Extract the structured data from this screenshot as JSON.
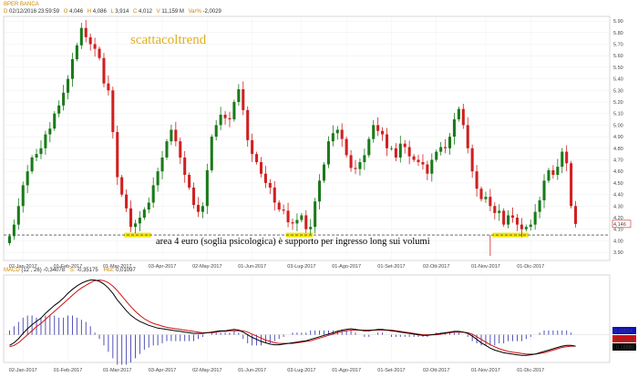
{
  "header": {
    "title": "BPER BANCA",
    "date": "02/12/2016",
    "time": "23:59:59",
    "open_label": "O",
    "open": "4,046",
    "high_label": "H",
    "high": "4,086",
    "low_label": "L",
    "low": "3,914",
    "close_label": "C",
    "close": "4,012",
    "vol_label": "V",
    "volume": "11,159 M",
    "var_label": "Var%",
    "var": "-2,0029"
  },
  "brand": "scattacoltrend",
  "annotation": "area 4 euro (soglia psicologica) è supporto per ingresso long sui volumi",
  "last_price_label": "4,146",
  "macd_header": {
    "name": "MACD",
    "params": "(12 , 26)",
    "macd_value": "-0,34078",
    "signal_label": "S:",
    "signal_value": "-0,35175",
    "hist_label": "Hist:",
    "hist_value": "0,01097"
  },
  "macd_right_labels": [
    "0,00554",
    "-0,16108",
    "-0,16880"
  ],
  "colors": {
    "up": "#1a7a1a",
    "down": "#d02020",
    "support": "#555555",
    "highlight": "#f2e600",
    "macd_line": "#000000",
    "signal_line": "#d01010",
    "hist": "#4040b0",
    "last_price_box": "#d02020",
    "brand": "#e0b020"
  },
  "chart_data": [
    {
      "type": "candlestick",
      "title": "BPER BANCA",
      "x_tick_labels": [
        "02-Jan-2017",
        "01-Feb-2017",
        "01-Mar-2017",
        "03-Apr-2017",
        "02-May-2017",
        "01-Jun-2017",
        "03-Lug-2017",
        "01-Ago-2017",
        "01-Set-2017",
        "02-Ott-2017",
        "01-Nov-2017",
        "01-Dic-2017"
      ],
      "y_tick_labels": [
        "3.90",
        "4.00",
        "4.10",
        "4.20",
        "4.30",
        "4.40",
        "4.50",
        "4.60",
        "4.70",
        "4.80",
        "4.90",
        "5.00",
        "5.10",
        "5.20",
        "5.30",
        "5.40",
        "5.50",
        "5.60",
        "5.70",
        "5.80",
        "5.90"
      ],
      "ylim": [
        3.83,
        5.94
      ],
      "support_level": 4.05,
      "last_price": 4.146,
      "support_highlights": [
        {
          "x0": 26,
          "x1": 31
        },
        {
          "x0": 62,
          "x1": 67
        },
        {
          "x0": 108,
          "x1": 115
        }
      ],
      "closes": [
        4.04,
        4.14,
        4.3,
        4.48,
        4.6,
        4.72,
        4.75,
        4.8,
        4.92,
        4.97,
        5.1,
        5.17,
        5.28,
        5.4,
        5.57,
        5.69,
        5.84,
        5.76,
        5.7,
        5.66,
        5.58,
        5.36,
        5.3,
        4.94,
        4.55,
        4.4,
        4.28,
        4.12,
        4.15,
        4.2,
        4.27,
        4.33,
        4.48,
        4.6,
        4.72,
        4.86,
        4.96,
        4.86,
        4.72,
        4.57,
        4.46,
        4.31,
        4.25,
        4.3,
        4.61,
        4.9,
        5.0,
        5.09,
        5.06,
        5.05,
        5.2,
        5.31,
        5.13,
        4.87,
        4.75,
        4.68,
        4.58,
        4.5,
        4.46,
        4.33,
        4.27,
        4.26,
        4.16,
        4.15,
        4.18,
        4.22,
        4.1,
        4.12,
        4.34,
        4.52,
        4.66,
        4.86,
        4.93,
        4.96,
        4.88,
        4.74,
        4.63,
        4.62,
        4.68,
        4.74,
        4.88,
        5.0,
        4.95,
        4.92,
        4.8,
        4.8,
        4.72,
        4.84,
        4.81,
        4.73,
        4.7,
        4.68,
        4.66,
        4.58,
        4.7,
        4.77,
        4.81,
        4.8,
        4.9,
        5.05,
        5.14,
        5.0,
        4.8,
        4.6,
        4.45,
        4.36,
        4.38,
        4.3,
        4.24,
        4.26,
        4.14,
        4.22,
        4.2,
        4.14,
        4.1,
        4.12,
        4.14,
        4.25,
        4.35,
        4.52,
        4.61,
        4.57,
        4.64,
        4.77,
        4.67,
        4.3,
        4.146
      ]
    },
    {
      "type": "line",
      "title": "MACD",
      "series": [
        {
          "name": "MACD",
          "values": [
            -0.16,
            -0.12,
            -0.06,
            0.02,
            0.09,
            0.15,
            0.2,
            0.25,
            0.32,
            0.38,
            0.44,
            0.49,
            0.55,
            0.62,
            0.68,
            0.73,
            0.77,
            0.8,
            0.82,
            0.82,
            0.8,
            0.76,
            0.7,
            0.62,
            0.52,
            0.44,
            0.36,
            0.29,
            0.24,
            0.2,
            0.17,
            0.14,
            0.12,
            0.1,
            0.09,
            0.08,
            0.07,
            0.06,
            0.05,
            0.04,
            0.03,
            0.02,
            0.02,
            0.02,
            0.03,
            0.04,
            0.05,
            0.06,
            0.06,
            0.07,
            0.08,
            0.07,
            0.04,
            0.0,
            -0.04,
            -0.07,
            -0.1,
            -0.12,
            -0.14,
            -0.15,
            -0.15,
            -0.14,
            -0.13,
            -0.12,
            -0.11,
            -0.1,
            -0.09,
            -0.07,
            -0.05,
            -0.03,
            -0.01,
            0.01,
            0.03,
            0.05,
            0.07,
            0.08,
            0.09,
            0.08,
            0.07,
            0.06,
            0.06,
            0.07,
            0.08,
            0.08,
            0.07,
            0.06,
            0.05,
            0.04,
            0.03,
            0.02,
            0.01,
            0.0,
            -0.01,
            -0.01,
            0.0,
            0.01,
            0.02,
            0.03,
            0.04,
            0.05,
            0.05,
            0.04,
            0.02,
            -0.02,
            -0.07,
            -0.12,
            -0.16,
            -0.2,
            -0.23,
            -0.25,
            -0.27,
            -0.28,
            -0.29,
            -0.3,
            -0.31,
            -0.31,
            -0.3,
            -0.29,
            -0.27,
            -0.25,
            -0.23,
            -0.21,
            -0.19,
            -0.17,
            -0.16,
            -0.16,
            -0.17
          ]
        },
        {
          "name": "S",
          "values": [
            -0.18,
            -0.16,
            -0.12,
            -0.06,
            0.0,
            0.06,
            0.12,
            0.17,
            0.23,
            0.29,
            0.35,
            0.41,
            0.47,
            0.53,
            0.59,
            0.65,
            0.7,
            0.74,
            0.78,
            0.81,
            0.82,
            0.81,
            0.78,
            0.73,
            0.66,
            0.58,
            0.5,
            0.42,
            0.35,
            0.29,
            0.24,
            0.2,
            0.17,
            0.15,
            0.13,
            0.11,
            0.1,
            0.09,
            0.08,
            0.07,
            0.06,
            0.05,
            0.04,
            0.03,
            0.03,
            0.03,
            0.04,
            0.05,
            0.05,
            0.06,
            0.06,
            0.06,
            0.06,
            0.04,
            0.01,
            -0.02,
            -0.05,
            -0.08,
            -0.1,
            -0.12,
            -0.13,
            -0.13,
            -0.13,
            -0.13,
            -0.12,
            -0.11,
            -0.1,
            -0.09,
            -0.07,
            -0.05,
            -0.03,
            -0.01,
            0.01,
            0.03,
            0.05,
            0.06,
            0.07,
            0.07,
            0.07,
            0.07,
            0.07,
            0.07,
            0.07,
            0.07,
            0.07,
            0.07,
            0.06,
            0.05,
            0.04,
            0.03,
            0.02,
            0.01,
            0.0,
            0.0,
            0.0,
            0.0,
            0.01,
            0.02,
            0.03,
            0.04,
            0.04,
            0.04,
            0.03,
            0.01,
            -0.03,
            -0.07,
            -0.11,
            -0.15,
            -0.18,
            -0.21,
            -0.23,
            -0.25,
            -0.26,
            -0.27,
            -0.28,
            -0.29,
            -0.29,
            -0.29,
            -0.28,
            -0.27,
            -0.25,
            -0.23,
            -0.21,
            -0.19,
            -0.18,
            -0.17,
            -0.17
          ]
        }
      ],
      "ylim": [
        -0.36,
        0.84
      ]
    }
  ]
}
